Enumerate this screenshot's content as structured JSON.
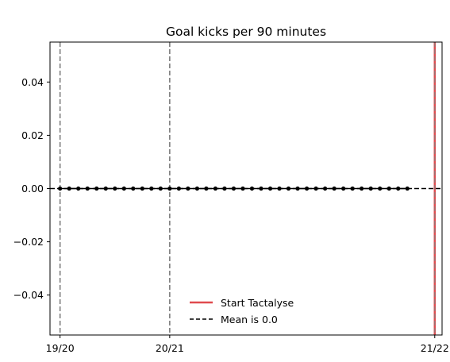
{
  "chart_data": {
    "type": "line",
    "title": "Goal kicks per 90 minutes",
    "xlabel": "",
    "ylabel": "",
    "ylim": [
      -0.055,
      0.055
    ],
    "xlim": [
      -1.1,
      41.8
    ],
    "yticks": [
      {
        "value": 0.04,
        "label": "0.04"
      },
      {
        "value": 0.02,
        "label": "0.02"
      },
      {
        "value": 0.0,
        "label": "0.00"
      },
      {
        "value": -0.02,
        "label": "−0.02"
      },
      {
        "value": -0.04,
        "label": "−0.04"
      }
    ],
    "xticks": [
      {
        "value": 0,
        "label": "19/20"
      },
      {
        "value": 12,
        "label": "20/21"
      },
      {
        "value": 41,
        "label": "21/22"
      }
    ],
    "season_lines": [
      0,
      12
    ],
    "tactalyse_start": 41,
    "mean": 0.0,
    "series": [
      {
        "name": "Goal kicks per 90",
        "x": [
          0,
          1,
          2,
          3,
          4,
          5,
          6,
          7,
          8,
          9,
          10,
          11,
          12,
          13,
          14,
          15,
          16,
          17,
          18,
          19,
          20,
          21,
          22,
          23,
          24,
          25,
          26,
          27,
          28,
          29,
          30,
          31,
          32,
          33,
          34,
          35,
          36,
          37,
          38
        ],
        "values": [
          0,
          0,
          0,
          0,
          0,
          0,
          0,
          0,
          0,
          0,
          0,
          0,
          0,
          0,
          0,
          0,
          0,
          0,
          0,
          0,
          0,
          0,
          0,
          0,
          0,
          0,
          0,
          0,
          0,
          0,
          0,
          0,
          0,
          0,
          0,
          0,
          0,
          0,
          0
        ]
      }
    ],
    "legend": {
      "position": "lower-center",
      "entries": [
        {
          "label": "Start Tactalyse",
          "style": "solid",
          "color": "#e04b4f"
        },
        {
          "label": "Mean is 0.0",
          "style": "dashed",
          "color": "#000000"
        }
      ]
    },
    "colors": {
      "season_line": "#7f7f7f",
      "tactalyse_line": "#e04b4f",
      "series": "#000000",
      "mean_line": "#000000"
    }
  }
}
